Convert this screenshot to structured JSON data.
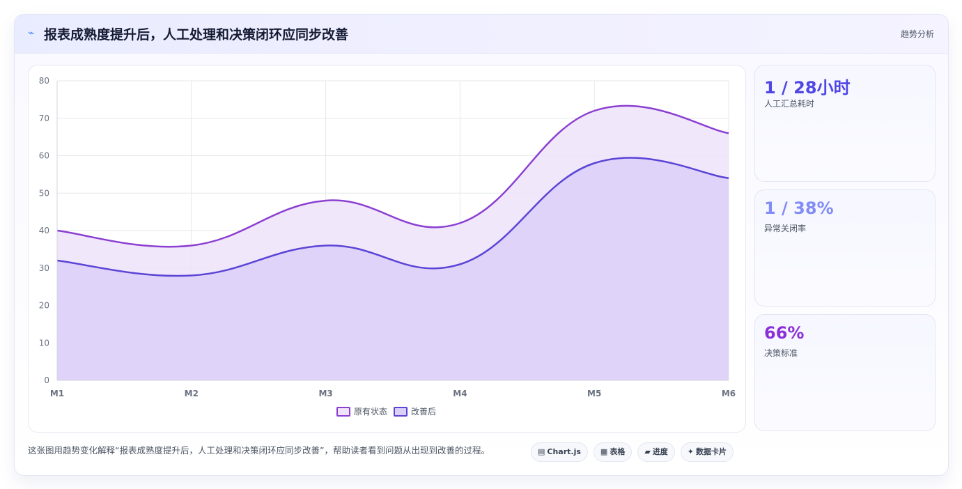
{
  "header": {
    "icon": "trend-line-icon",
    "title": "报表成熟度提升后，人工处理和决策闭环应同步改善",
    "tag": "趋势分析"
  },
  "chart_data": {
    "type": "area",
    "categories": [
      "M1",
      "M2",
      "M3",
      "M4",
      "M5",
      "M6"
    ],
    "ylim": [
      0,
      80
    ],
    "yticks": [
      0,
      10,
      20,
      30,
      40,
      50,
      60,
      70,
      80
    ],
    "grid": true,
    "legend_position": "bottom",
    "series": [
      {
        "name": "原有状态",
        "values": [
          40,
          36,
          48,
          42,
          72,
          66
        ],
        "color": "#8b3fd1",
        "fill": "#efe3fa"
      },
      {
        "name": "改善后",
        "values": [
          32,
          28,
          36,
          31,
          58,
          54
        ],
        "color": "#5a45d6",
        "fill": "#dccff8"
      }
    ]
  },
  "stats": [
    {
      "value": "1 / 28小时",
      "label": "人工汇总耗时",
      "color": "#4f46e5"
    },
    {
      "value": "1 / 38%",
      "label": "异常关闭率",
      "color": "#818cf8"
    },
    {
      "value": "66%",
      "label": "决策标准",
      "color": "#8b2fd9"
    }
  ],
  "footer": {
    "text": "这张图用趋势变化解释“报表成熟度提升后，人工处理和决策闭环应同步改善”，帮助读者看到问题从出现到改善的过程。",
    "chips": [
      {
        "icon": "chart-icon",
        "glyph": "▤",
        "label": "Chart.js"
      },
      {
        "icon": "table-icon",
        "glyph": "▦",
        "label": "表格"
      },
      {
        "icon": "progress-icon",
        "glyph": "▰",
        "label": "进度"
      },
      {
        "icon": "data-card-icon",
        "glyph": "✦",
        "label": "数据卡片"
      }
    ]
  }
}
